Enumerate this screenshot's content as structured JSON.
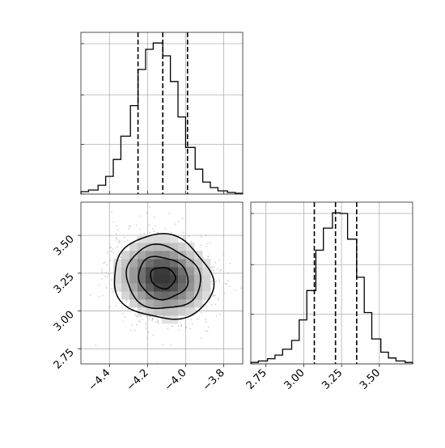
{
  "chart_data": {
    "type": "corner",
    "title": "",
    "colors": {
      "line": "#000000",
      "grid": "#b0b0b0",
      "points": "#7f7f7f",
      "axes": "#262626"
    },
    "grid": true,
    "parameters": [
      {
        "name": "",
        "range": [
          -4.55,
          -3.7
        ],
        "ticks": [
          -4.4,
          -4.2,
          -4.0,
          -3.8
        ],
        "tick_labels": [
          "−4.4",
          "−4.2",
          "−4.0",
          "−3.8"
        ]
      },
      {
        "name": "",
        "range": [
          2.65,
          3.72
        ],
        "ticks": [
          2.75,
          3.0,
          3.25,
          3.5
        ],
        "tick_labels": [
          "2.75",
          "3.00",
          "3.25",
          "3.50"
        ]
      }
    ],
    "marginal_1": {
      "type": "histogram",
      "bin_edges": [
        -4.55,
        -4.51,
        -4.46,
        -4.42,
        -4.38,
        -4.34,
        -4.29,
        -4.25,
        -4.21,
        -4.17,
        -4.12,
        -4.08,
        -4.04,
        -4.0,
        -3.95,
        -3.91,
        -3.87,
        -3.83,
        -3.78,
        -3.74,
        -3.7
      ],
      "counts": [
        3,
        5,
        11,
        22,
        43,
        72,
        110,
        155,
        180,
        188,
        172,
        140,
        96,
        58,
        31,
        15,
        8,
        4,
        2,
        1
      ],
      "quantiles": [
        -4.25,
        -4.12,
        -3.99
      ]
    },
    "marginal_2": {
      "type": "histogram",
      "bin_edges": [
        2.65,
        2.7,
        2.76,
        2.81,
        2.86,
        2.92,
        2.97,
        3.02,
        3.08,
        3.13,
        3.19,
        3.24,
        3.29,
        3.35,
        3.4,
        3.45,
        3.51,
        3.56,
        3.61,
        3.67,
        3.72
      ],
      "counts": [
        2,
        4,
        7,
        12,
        20,
        32,
        60,
        100,
        155,
        185,
        206,
        205,
        170,
        118,
        70,
        34,
        16,
        8,
        4,
        2
      ],
      "quantiles": [
        3.07,
        3.21,
        3.35
      ]
    },
    "joint": {
      "type": "hist2d",
      "center": [
        -4.12,
        3.22
      ],
      "sigma": [
        0.13,
        0.14
      ],
      "rho": -0.1,
      "contour_levels_sigma": [
        0.5,
        1.0,
        1.5,
        2.0
      ]
    }
  }
}
